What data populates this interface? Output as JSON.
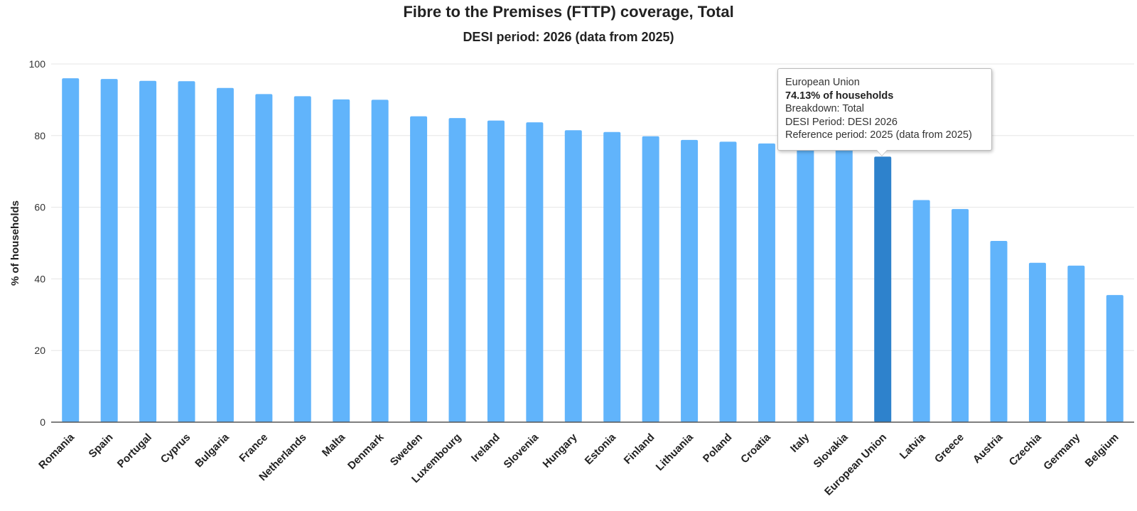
{
  "chart_data": {
    "type": "bar",
    "title": "Fibre to the Premises (FTTP) coverage, Total",
    "subtitle": "DESI period: 2026 (data from 2025)",
    "ylabel": "% of households",
    "xlabel": "",
    "ylim": [
      0,
      100
    ],
    "yticks": [
      0,
      20,
      40,
      60,
      80,
      100
    ],
    "grid": true,
    "categories": [
      "Romania",
      "Spain",
      "Portugal",
      "Cyprus",
      "Bulgaria",
      "France",
      "Netherlands",
      "Malta",
      "Denmark",
      "Sweden",
      "Luxembourg",
      "Ireland",
      "Slovenia",
      "Hungary",
      "Estonia",
      "Finland",
      "Lithuania",
      "Poland",
      "Croatia",
      "Italy",
      "Slovakia",
      "European Union",
      "Latvia",
      "Greece",
      "Austria",
      "Czechia",
      "Germany",
      "Belgium"
    ],
    "values": [
      96.0,
      95.8,
      95.3,
      95.2,
      93.3,
      91.6,
      91.0,
      90.1,
      90.0,
      85.4,
      84.9,
      84.2,
      83.7,
      81.5,
      81.0,
      79.8,
      78.8,
      78.3,
      77.8,
      76.5,
      76.2,
      74.13,
      62.0,
      59.5,
      50.6,
      44.5,
      43.7,
      35.5
    ],
    "highlight": "European Union",
    "colors": {
      "bar": "#61b4fb",
      "bar_highlight": "#2e82cc",
      "grid": "#e6e6e6",
      "axis": "#555555"
    }
  },
  "tooltip": {
    "line1": "European Union",
    "line2": "74.13% of households",
    "line3": "Breakdown: Total",
    "line4": "DESI Period: DESI 2026",
    "line5": "Reference period: 2025 (data from 2025)"
  }
}
